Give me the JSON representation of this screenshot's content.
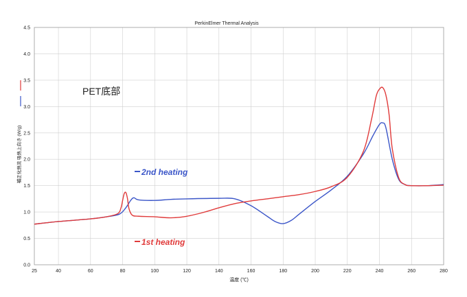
{
  "chart_data": {
    "type": "line",
    "title": "PerkinElmer Thermal Analysis",
    "xlabel": "温度 (℃)",
    "ylabel": "補正化熱流 吸熱上向き (W/g)",
    "xlim": [
      25,
      280
    ],
    "ylim": [
      0.0,
      4.5
    ],
    "x_ticks": [
      25,
      40,
      60,
      80,
      100,
      120,
      140,
      160,
      180,
      200,
      220,
      240,
      260,
      280
    ],
    "y_ticks": [
      "0.0",
      "0.5",
      "1.0",
      "1.5",
      "2.0",
      "2.5",
      "3.0",
      "3.5",
      "4.0",
      "4.5"
    ],
    "grid": true,
    "annotation": "PET底部",
    "series": [
      {
        "name": "2nd heating",
        "color": "#3a55c8",
        "legend_label": "2nd heating",
        "x": [
          25,
          40,
          60,
          70,
          78,
          82,
          85,
          87,
          90,
          100,
          110,
          120,
          140,
          150,
          160,
          170,
          175,
          180,
          185,
          190,
          200,
          210,
          220,
          230,
          236,
          240,
          242,
          244,
          248,
          252,
          256,
          260,
          270,
          280
        ],
        "y": [
          0.77,
          0.82,
          0.87,
          0.91,
          0.96,
          1.08,
          1.22,
          1.27,
          1.23,
          1.22,
          1.24,
          1.25,
          1.26,
          1.25,
          1.12,
          0.92,
          0.82,
          0.78,
          0.84,
          0.96,
          1.2,
          1.42,
          1.68,
          2.1,
          2.45,
          2.66,
          2.69,
          2.6,
          2.0,
          1.62,
          1.52,
          1.5,
          1.5,
          1.52
        ]
      },
      {
        "name": "1st heating",
        "color": "#e03a3a",
        "legend_label": "1st heating",
        "x": [
          25,
          40,
          60,
          70,
          77,
          79,
          80,
          81,
          82,
          83,
          84,
          86,
          90,
          100,
          110,
          120,
          130,
          140,
          150,
          160,
          170,
          180,
          190,
          200,
          210,
          220,
          230,
          235,
          238,
          240,
          242,
          244,
          246,
          248,
          252,
          256,
          260,
          270,
          280
        ],
        "y": [
          0.77,
          0.82,
          0.87,
          0.91,
          0.97,
          1.08,
          1.22,
          1.35,
          1.37,
          1.26,
          1.06,
          0.94,
          0.92,
          0.91,
          0.89,
          0.92,
          0.99,
          1.08,
          1.16,
          1.21,
          1.25,
          1.29,
          1.33,
          1.39,
          1.48,
          1.66,
          2.15,
          2.75,
          3.2,
          3.33,
          3.36,
          3.22,
          2.85,
          2.2,
          1.65,
          1.52,
          1.5,
          1.5,
          1.51
        ]
      }
    ]
  }
}
